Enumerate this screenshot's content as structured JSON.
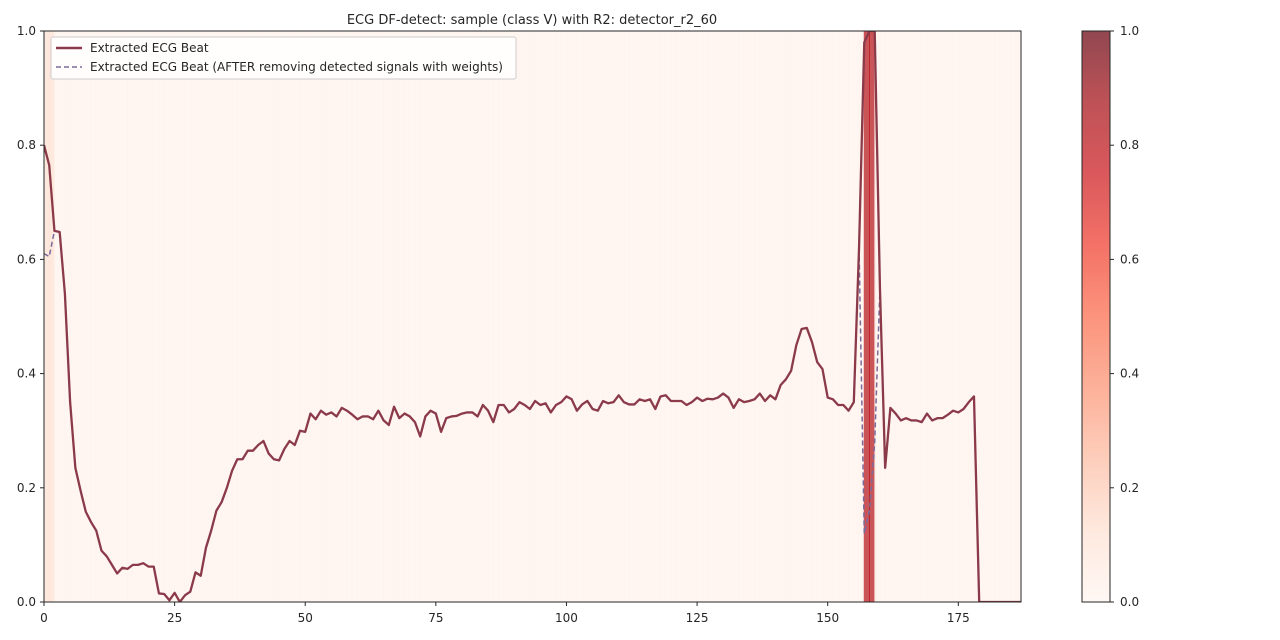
{
  "chart_data": {
    "type": "line",
    "title": "ECG DF-detect: sample (class V) with R2: detector_r2_60",
    "xlabel": "",
    "ylabel": "",
    "xlim": [
      0,
      187
    ],
    "ylim": [
      0,
      1.0
    ],
    "x_ticks": [
      "0",
      "25",
      "50",
      "75",
      "100",
      "125",
      "150",
      "175"
    ],
    "y_ticks": [
      "0.0",
      "0.2",
      "0.4",
      "0.6",
      "0.8",
      "1.0"
    ],
    "grid": false,
    "legend_position": "upper-left",
    "series": [
      {
        "name": "Extracted ECG Beat",
        "color": "#8b3a4a",
        "style": "solid",
        "values": [
          0.8,
          0.765,
          0.65,
          0.648,
          0.54,
          0.35,
          0.235,
          0.195,
          0.158,
          0.14,
          0.125,
          0.09,
          0.08,
          0.065,
          0.05,
          0.06,
          0.058,
          0.065,
          0.065,
          0.068,
          0.062,
          0.062,
          0.015,
          0.014,
          0.003,
          0.016,
          0.0,
          0.012,
          0.018,
          0.052,
          0.046,
          0.095,
          0.125,
          0.16,
          0.175,
          0.2,
          0.23,
          0.25,
          0.25,
          0.265,
          0.265,
          0.275,
          0.282,
          0.26,
          0.25,
          0.248,
          0.268,
          0.282,
          0.275,
          0.3,
          0.298,
          0.33,
          0.32,
          0.335,
          0.328,
          0.332,
          0.325,
          0.34,
          0.335,
          0.328,
          0.32,
          0.325,
          0.325,
          0.32,
          0.335,
          0.318,
          0.31,
          0.342,
          0.322,
          0.33,
          0.325,
          0.315,
          0.29,
          0.325,
          0.335,
          0.33,
          0.298,
          0.322,
          0.325,
          0.326,
          0.33,
          0.332,
          0.332,
          0.325,
          0.345,
          0.335,
          0.315,
          0.345,
          0.345,
          0.332,
          0.338,
          0.35,
          0.345,
          0.338,
          0.352,
          0.345,
          0.348,
          0.332,
          0.345,
          0.35,
          0.36,
          0.355,
          0.335,
          0.346,
          0.352,
          0.338,
          0.335,
          0.352,
          0.348,
          0.35,
          0.362,
          0.35,
          0.346,
          0.346,
          0.355,
          0.352,
          0.355,
          0.338,
          0.36,
          0.362,
          0.352,
          0.352,
          0.352,
          0.345,
          0.35,
          0.358,
          0.352,
          0.356,
          0.355,
          0.358,
          0.365,
          0.358,
          0.34,
          0.355,
          0.35,
          0.352,
          0.355,
          0.365,
          0.352,
          0.362,
          0.355,
          0.38,
          0.39,
          0.405,
          0.45,
          0.478,
          0.48,
          0.455,
          0.42,
          0.408,
          0.358,
          0.355,
          0.345,
          0.345,
          0.335,
          0.35,
          0.62,
          0.98,
          1.0,
          1.0,
          0.55,
          0.235,
          0.34,
          0.33,
          0.318,
          0.322,
          0.318,
          0.318,
          0.315,
          0.33,
          0.318,
          0.322,
          0.322,
          0.328,
          0.335,
          0.332,
          0.338,
          0.35,
          0.36,
          0.0,
          0.0,
          0.0,
          0.0,
          0.0,
          0.0,
          0.0,
          0.0,
          0.0
        ]
      },
      {
        "name": "Extracted ECG Beat (AFTER removing detected signals with weights)",
        "color": "#7a6a9a",
        "style": "dashed",
        "values": [
          0.61,
          0.605,
          0.65,
          0.648,
          0.54,
          0.35,
          0.235,
          0.195,
          0.158,
          0.14,
          0.125,
          0.09,
          0.08,
          0.065,
          0.05,
          0.06,
          0.058,
          0.065,
          0.065,
          0.068,
          0.062,
          0.062,
          0.015,
          0.014,
          0.003,
          0.016,
          0.0,
          0.012,
          0.018,
          0.052,
          0.046,
          0.095,
          0.125,
          0.16,
          0.175,
          0.2,
          0.23,
          0.25,
          0.25,
          0.265,
          0.265,
          0.275,
          0.282,
          0.26,
          0.25,
          0.248,
          0.268,
          0.282,
          0.275,
          0.3,
          0.298,
          0.33,
          0.32,
          0.335,
          0.328,
          0.332,
          0.325,
          0.34,
          0.335,
          0.328,
          0.32,
          0.325,
          0.325,
          0.32,
          0.335,
          0.318,
          0.31,
          0.342,
          0.322,
          0.33,
          0.325,
          0.315,
          0.29,
          0.325,
          0.335,
          0.33,
          0.298,
          0.322,
          0.325,
          0.326,
          0.33,
          0.332,
          0.332,
          0.325,
          0.345,
          0.335,
          0.315,
          0.345,
          0.345,
          0.332,
          0.338,
          0.35,
          0.345,
          0.338,
          0.352,
          0.345,
          0.348,
          0.332,
          0.345,
          0.35,
          0.36,
          0.355,
          0.335,
          0.346,
          0.352,
          0.338,
          0.335,
          0.352,
          0.348,
          0.35,
          0.362,
          0.35,
          0.346,
          0.346,
          0.355,
          0.352,
          0.355,
          0.338,
          0.36,
          0.362,
          0.352,
          0.352,
          0.352,
          0.345,
          0.35,
          0.358,
          0.352,
          0.356,
          0.355,
          0.358,
          0.365,
          0.358,
          0.34,
          0.355,
          0.35,
          0.352,
          0.355,
          0.365,
          0.352,
          0.362,
          0.355,
          0.38,
          0.39,
          0.405,
          0.45,
          0.478,
          0.48,
          0.455,
          0.42,
          0.408,
          0.358,
          0.355,
          0.345,
          0.345,
          0.335,
          0.35,
          0.62,
          0.12,
          0.16,
          0.28,
          0.55,
          0.235,
          0.34,
          0.33,
          0.318,
          0.322,
          0.318,
          0.318,
          0.315,
          0.33,
          0.318,
          0.322,
          0.322,
          0.328,
          0.335,
          0.332,
          0.338,
          0.35,
          0.36,
          0.0,
          0.0,
          0.0,
          0.0,
          0.0,
          0.0,
          0.0,
          0.0,
          0.0
        ]
      }
    ],
    "weights": [
      0.12,
      0.12,
      0.02,
      0.02,
      0.02,
      0.02,
      0.02,
      0.02,
      0.02,
      0.02,
      0.02,
      0.02,
      0.02,
      0.02,
      0.02,
      0.02,
      0.02,
      0.02,
      0.02,
      0.02,
      0.02,
      0.02,
      0.02,
      0.02,
      0.02,
      0.02,
      0.02,
      0.02,
      0.02,
      0.02,
      0.02,
      0.02,
      0.02,
      0.02,
      0.02,
      0.02,
      0.02,
      0.02,
      0.02,
      0.02,
      0.02,
      0.02,
      0.02,
      0.02,
      0.02,
      0.02,
      0.02,
      0.02,
      0.02,
      0.02,
      0.02,
      0.02,
      0.02,
      0.02,
      0.02,
      0.02,
      0.02,
      0.02,
      0.02,
      0.02,
      0.02,
      0.02,
      0.02,
      0.02,
      0.02,
      0.02,
      0.02,
      0.02,
      0.02,
      0.02,
      0.02,
      0.02,
      0.02,
      0.02,
      0.02,
      0.02,
      0.02,
      0.02,
      0.02,
      0.02,
      0.02,
      0.02,
      0.02,
      0.02,
      0.02,
      0.02,
      0.02,
      0.02,
      0.02,
      0.02,
      0.02,
      0.02,
      0.02,
      0.02,
      0.02,
      0.02,
      0.02,
      0.02,
      0.02,
      0.02,
      0.02,
      0.02,
      0.02,
      0.02,
      0.02,
      0.02,
      0.02,
      0.02,
      0.02,
      0.02,
      0.02,
      0.02,
      0.02,
      0.02,
      0.02,
      0.02,
      0.02,
      0.02,
      0.02,
      0.02,
      0.02,
      0.02,
      0.02,
      0.02,
      0.02,
      0.02,
      0.02,
      0.02,
      0.02,
      0.02,
      0.02,
      0.02,
      0.02,
      0.02,
      0.02,
      0.02,
      0.02,
      0.02,
      0.02,
      0.02,
      0.02,
      0.02,
      0.02,
      0.02,
      0.02,
      0.02,
      0.02,
      0.02,
      0.02,
      0.02,
      0.02,
      0.02,
      0.02,
      0.02,
      0.02,
      0.02,
      0.02,
      0.82,
      0.82,
      0.02,
      0.02,
      0.02,
      0.02,
      0.02,
      0.02,
      0.02,
      0.02,
      0.02,
      0.02,
      0.02,
      0.02,
      0.02,
      0.02,
      0.02,
      0.02,
      0.02,
      0.02,
      0.02,
      0.02,
      0.02,
      0.02,
      0.02,
      0.02,
      0.02,
      0.02,
      0.02,
      0.02,
      0.02
    ],
    "colorbar": {
      "range": [
        0,
        1.0
      ],
      "ticks": [
        "0.0",
        "0.2",
        "0.4",
        "0.6",
        "0.8",
        "1.0"
      ],
      "colormap": "Reds"
    }
  }
}
